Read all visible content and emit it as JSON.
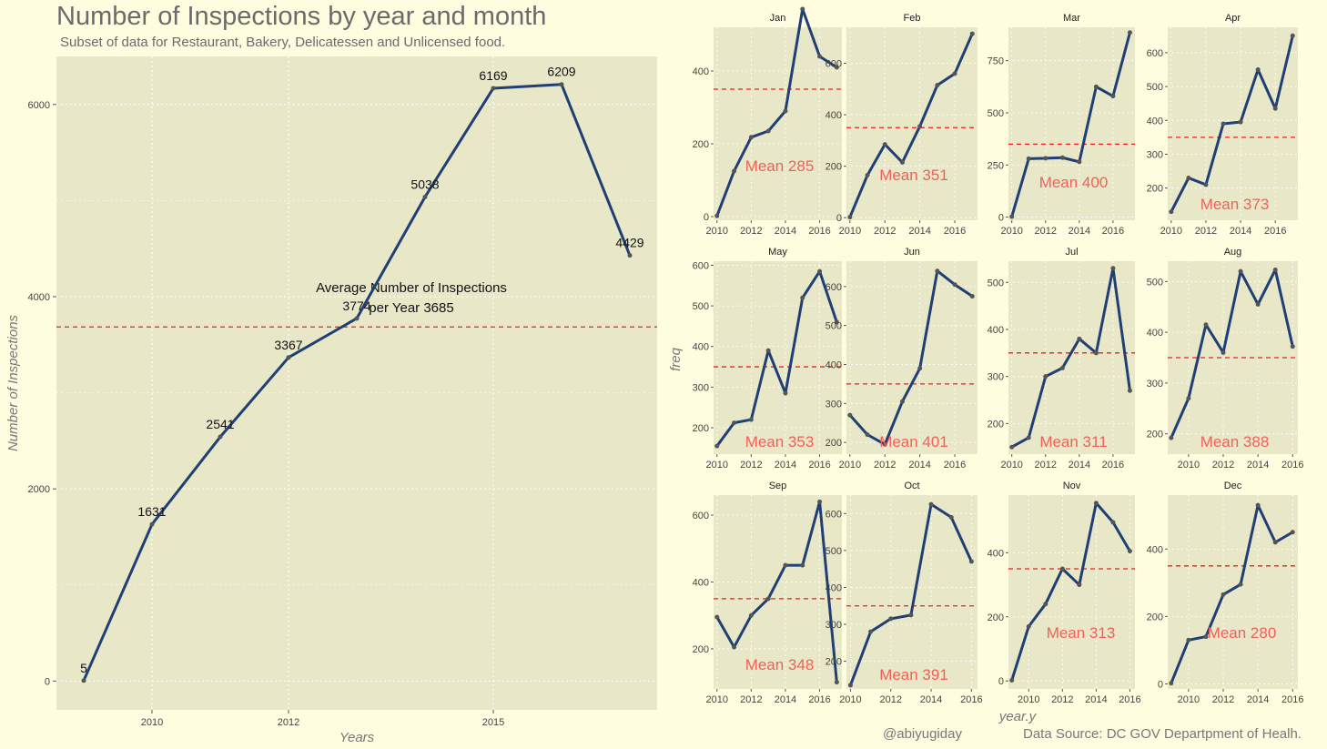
{
  "title": "Number of Inspections by year and month",
  "subtitle": "Subset of data for Restaurant, Bakery, Delicatessen and Unlicensed food.",
  "credit_author": "@abiyugiday",
  "credit_source": "Data Source: DC GOV Departpment of Healh.",
  "colors": {
    "line": "#1f3f75",
    "mean_line": "#e8201e",
    "panel": "#e8e8c8",
    "page": "#fffde0",
    "mean_label": "#f0605a"
  },
  "chart_data": [
    {
      "type": "line",
      "title": "Number of Inspections by year and month",
      "xlabel": "Years",
      "ylabel": "Number of Inspections",
      "x": [
        2009,
        2010,
        2011,
        2012,
        2013,
        2014,
        2015,
        2016,
        2017
      ],
      "values": [
        5,
        1631,
        2541,
        3367,
        3774,
        5038,
        6169,
        6209,
        4429
      ],
      "point_labels": [
        "5",
        "1631",
        "2541",
        "3367",
        "3774",
        "5038",
        "6169",
        "6209",
        "4429"
      ],
      "xticks": [
        "2010",
        "2012",
        "2015"
      ],
      "xtick_values": [
        2010,
        2012,
        2015
      ],
      "yticks": [
        "0",
        "2000",
        "4000",
        "6000"
      ],
      "ytick_values": [
        0,
        2000,
        4000,
        6000
      ],
      "xlim": [
        2008.6,
        2017.4
      ],
      "ylim": [
        -300,
        6500
      ],
      "mean": 3685,
      "annotation": [
        "Average Number of Inspections",
        "per Year 3685"
      ],
      "grid": true
    },
    {
      "type": "line",
      "facet": true,
      "xlabel": "year.y",
      "ylabel": "freq",
      "xticks": [
        "2010",
        "2012",
        "2014",
        "2016"
      ],
      "xtick_values": [
        2010,
        2012,
        2014,
        2016
      ],
      "mean_line": 350,
      "panels": [
        {
          "title": "Jan",
          "mean_label": "Mean 285",
          "x": [
            2010,
            2011,
            2012,
            2013,
            2014,
            2015,
            2016,
            2017
          ],
          "values": [
            2,
            125,
            218,
            235,
            290,
            570,
            440,
            410
          ],
          "ylim": [
            -10,
            520
          ],
          "yticks": [
            "0",
            "200",
            "400"
          ],
          "ytick_values": [
            0,
            200,
            400
          ]
        },
        {
          "title": "Feb",
          "mean_label": "Mean 351",
          "x": [
            2010,
            2011,
            2012,
            2013,
            2014,
            2015,
            2016,
            2017
          ],
          "values": [
            2,
            165,
            285,
            215,
            355,
            515,
            560,
            715
          ],
          "ylim": [
            -10,
            740
          ],
          "yticks": [
            "0",
            "200",
            "400",
            "600"
          ],
          "ytick_values": [
            0,
            200,
            400,
            600
          ]
        },
        {
          "title": "Mar",
          "mean_label": "Mean 400",
          "x": [
            2010,
            2011,
            2012,
            2013,
            2014,
            2015,
            2016,
            2017
          ],
          "values": [
            2,
            280,
            282,
            285,
            265,
            625,
            580,
            885
          ],
          "ylim": [
            -15,
            910
          ],
          "yticks": [
            "0",
            "250",
            "500",
            "750"
          ],
          "ytick_values": [
            0,
            250,
            500,
            750
          ]
        },
        {
          "title": "Apr",
          "mean_label": "Mean 373",
          "x": [
            2010,
            2011,
            2012,
            2013,
            2014,
            2015,
            2016,
            2017
          ],
          "values": [
            130,
            230,
            210,
            390,
            395,
            550,
            435,
            650
          ],
          "ylim": [
            105,
            675
          ],
          "yticks": [
            "200",
            "300",
            "400",
            "500",
            "600"
          ],
          "ytick_values": [
            200,
            300,
            400,
            500,
            600
          ]
        },
        {
          "title": "May",
          "mean_label": "Mean 353",
          "x": [
            2010,
            2011,
            2012,
            2013,
            2014,
            2015,
            2016,
            2017
          ],
          "values": [
            155,
            212,
            220,
            390,
            285,
            520,
            585,
            460
          ],
          "ylim": [
            135,
            610
          ],
          "yticks": [
            "200",
            "300",
            "400",
            "500",
            "600"
          ],
          "ytick_values": [
            200,
            300,
            400,
            500,
            600
          ]
        },
        {
          "title": "Jun",
          "mean_label": "Mean 401",
          "x": [
            2010,
            2011,
            2012,
            2013,
            2014,
            2015,
            2016,
            2017
          ],
          "values": [
            270,
            220,
            195,
            305,
            390,
            640,
            605,
            575
          ],
          "ylim": [
            170,
            665
          ],
          "yticks": [
            "200",
            "300",
            "400",
            "500",
            "600"
          ],
          "ytick_values": [
            200,
            300,
            400,
            500,
            600
          ]
        },
        {
          "title": "Jul",
          "mean_label": "Mean 311",
          "x": [
            2010,
            2011,
            2012,
            2013,
            2014,
            2015,
            2016,
            2017
          ],
          "values": [
            150,
            170,
            300,
            318,
            380,
            350,
            530,
            270
          ],
          "ylim": [
            135,
            545
          ],
          "yticks": [
            "200",
            "300",
            "400",
            "500"
          ],
          "ytick_values": [
            200,
            300,
            400,
            500
          ]
        },
        {
          "title": "Aug",
          "mean_label": "Mean 388",
          "x": [
            2009,
            2010,
            2011,
            2012,
            2013,
            2014,
            2015,
            2016
          ],
          "values": [
            192,
            270,
            415,
            360,
            520,
            455,
            523,
            372
          ],
          "ylim": [
            160,
            540
          ],
          "yticks": [
            "200",
            "300",
            "400",
            "500"
          ],
          "ytick_values": [
            200,
            300,
            400,
            500
          ]
        },
        {
          "title": "Sep",
          "mean_label": "Mean 348",
          "x": [
            2010,
            2011,
            2012,
            2013,
            2014,
            2015,
            2016,
            2017
          ],
          "values": [
            295,
            205,
            300,
            350,
            450,
            450,
            640,
            100
          ],
          "ylim": [
            80,
            660
          ],
          "yticks": [
            "200",
            "400",
            "600"
          ],
          "ytick_values": [
            200,
            400,
            600
          ]
        },
        {
          "title": "Oct",
          "mean_label": "Mean 391",
          "x": [
            2010,
            2011,
            2012,
            2013,
            2014,
            2015,
            2016
          ],
          "values": [
            135,
            280,
            315,
            325,
            625,
            590,
            470
          ],
          "ylim": [
            125,
            650
          ],
          "yticks": [
            "200",
            "300",
            "400",
            "500",
            "600"
          ],
          "ytick_values": [
            200,
            300,
            400,
            500,
            600
          ]
        },
        {
          "title": "Nov",
          "mean_label": "Mean 313",
          "x": [
            2009,
            2010,
            2011,
            2012,
            2013,
            2014,
            2015,
            2016
          ],
          "values": [
            2,
            170,
            240,
            350,
            300,
            555,
            495,
            405
          ],
          "ylim": [
            -25,
            580
          ],
          "yticks": [
            "0",
            "200",
            "400"
          ],
          "ytick_values": [
            0,
            200,
            400
          ]
        },
        {
          "title": "Dec",
          "mean_label": "Mean 280",
          "x": [
            2009,
            2010,
            2011,
            2012,
            2013,
            2014,
            2015,
            2016
          ],
          "values": [
            2,
            130,
            140,
            265,
            295,
            530,
            420,
            450
          ],
          "ylim": [
            -15,
            560
          ],
          "yticks": [
            "0",
            "200",
            "400"
          ],
          "ytick_values": [
            0,
            200,
            400
          ]
        }
      ]
    }
  ]
}
